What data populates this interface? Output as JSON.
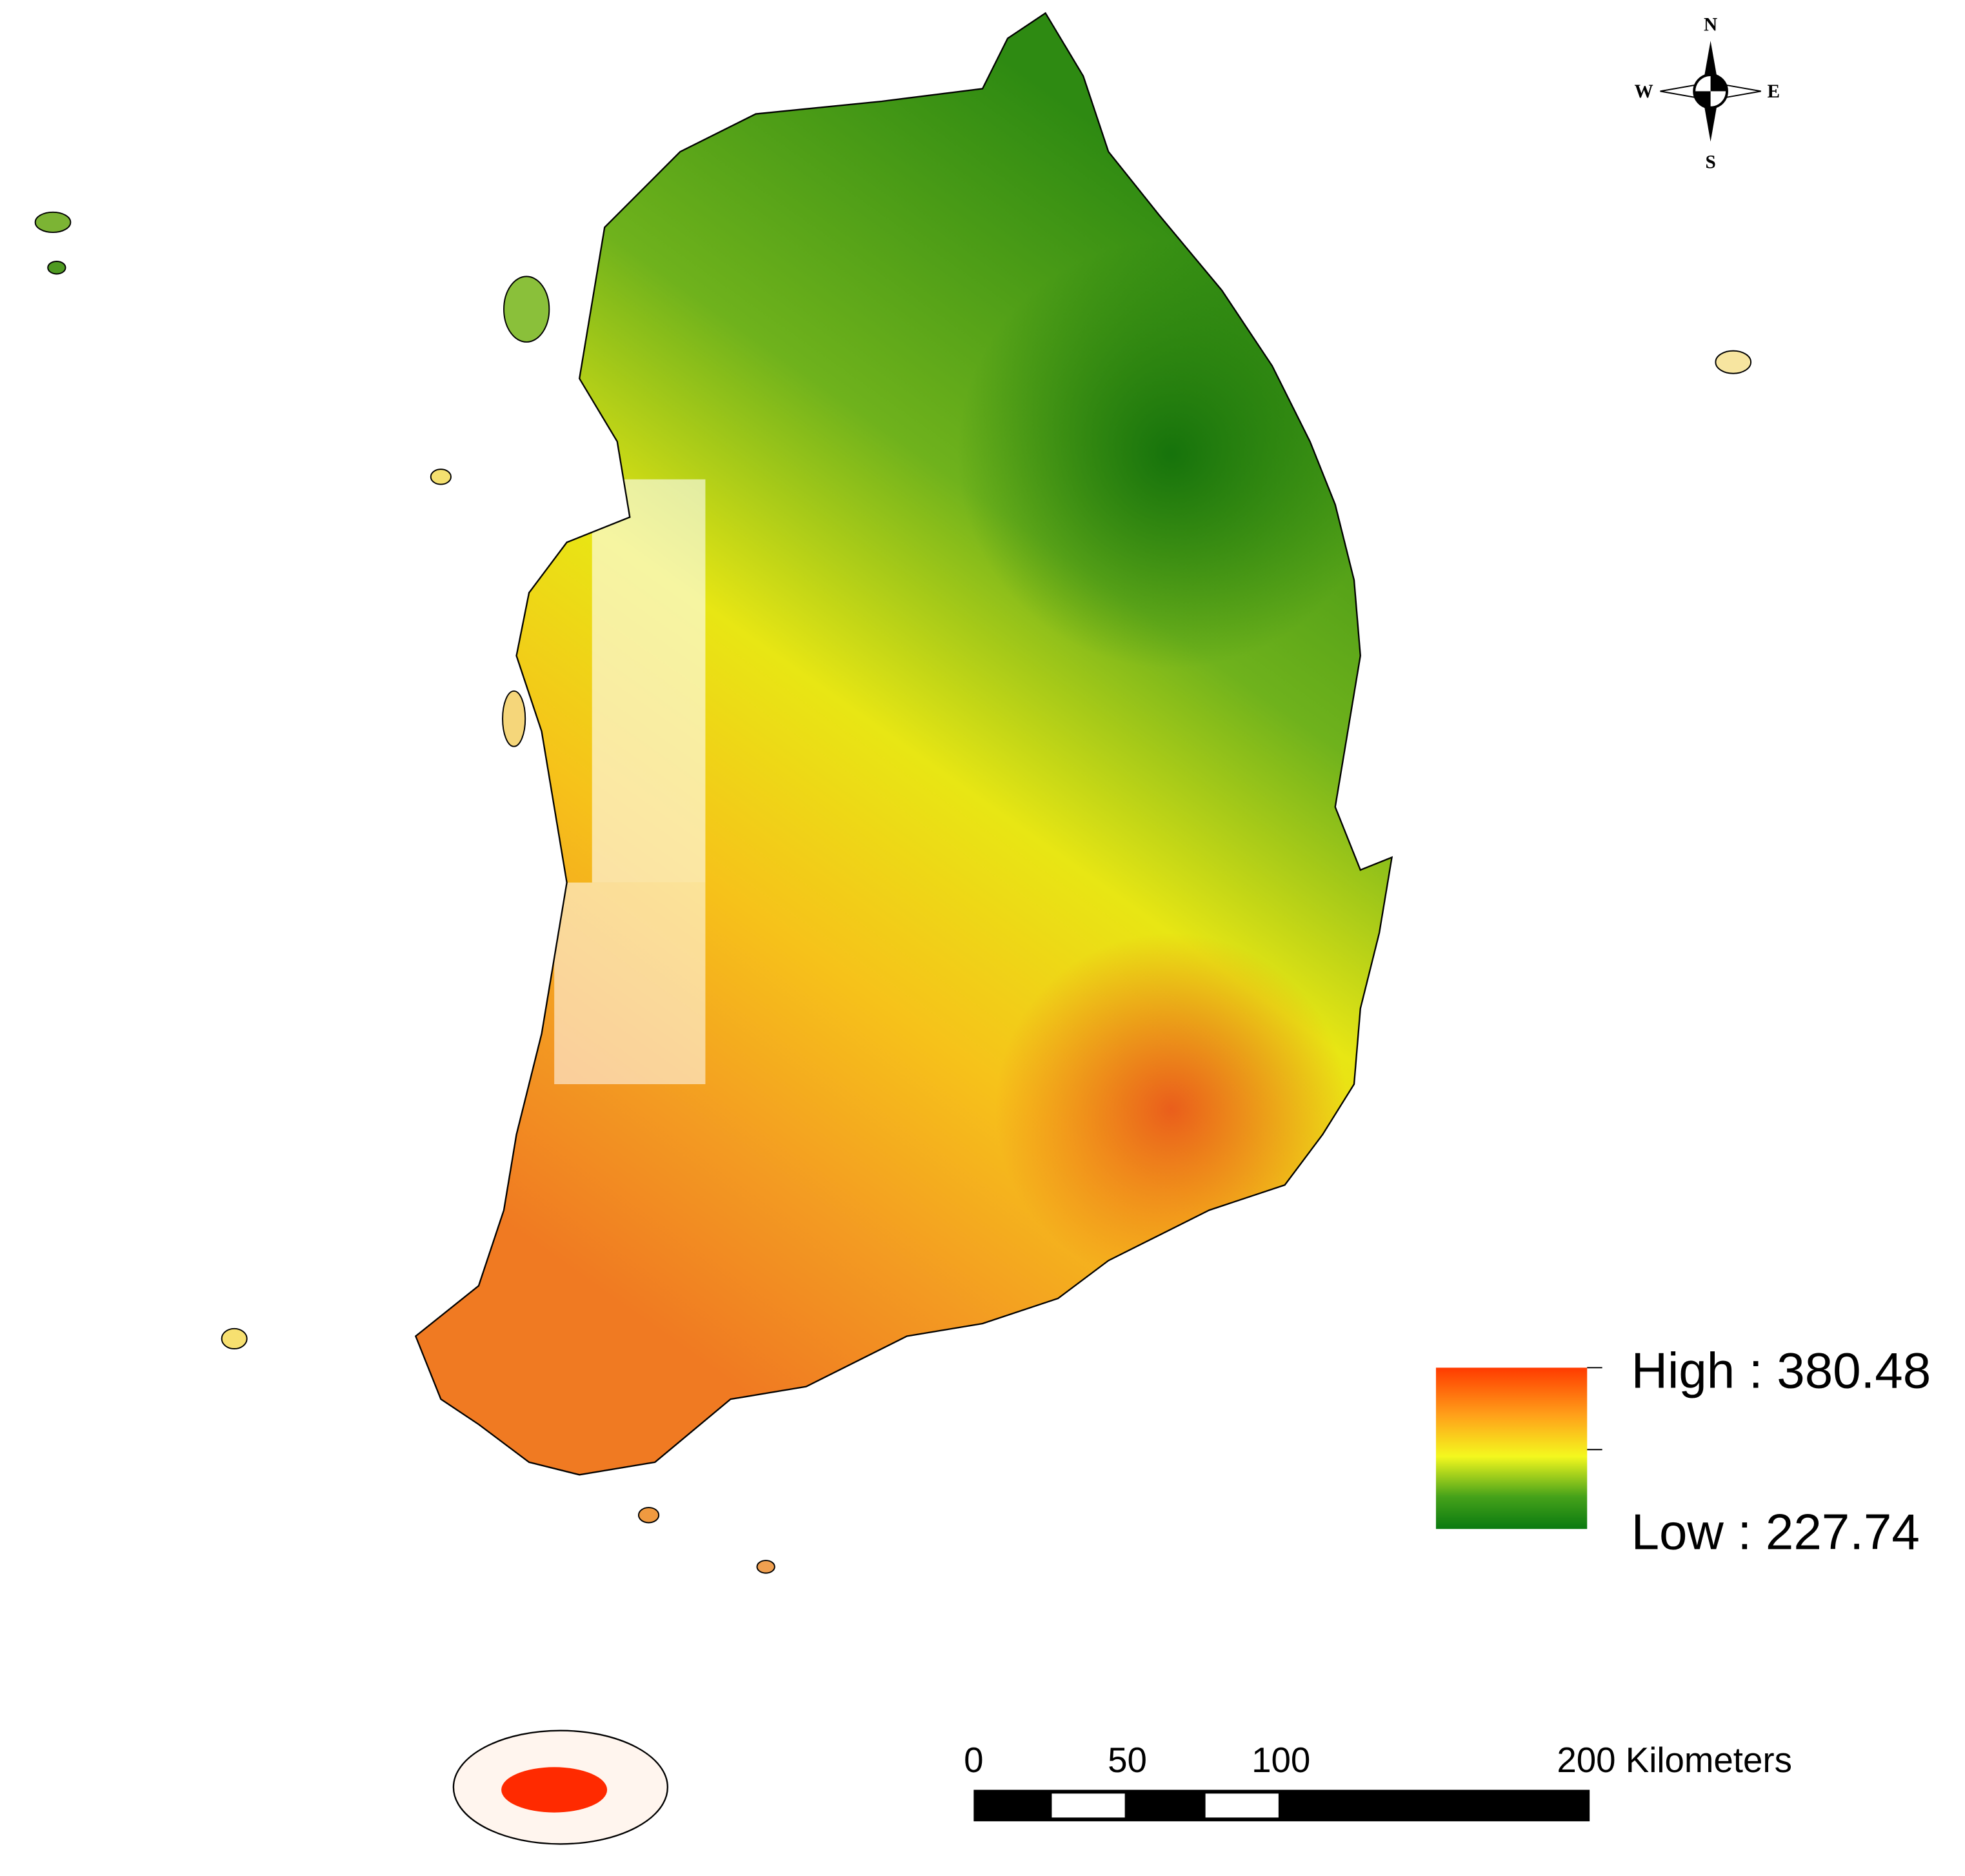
{
  "legend": {
    "high_label": "High : 380.48",
    "low_label": "Low : 227.74"
  },
  "compass": {
    "north": "N",
    "east": "E",
    "south": "S",
    "west": "W"
  },
  "scale_bar": {
    "labels": [
      "0",
      "50",
      "100",
      "200 Kilometers"
    ]
  }
}
